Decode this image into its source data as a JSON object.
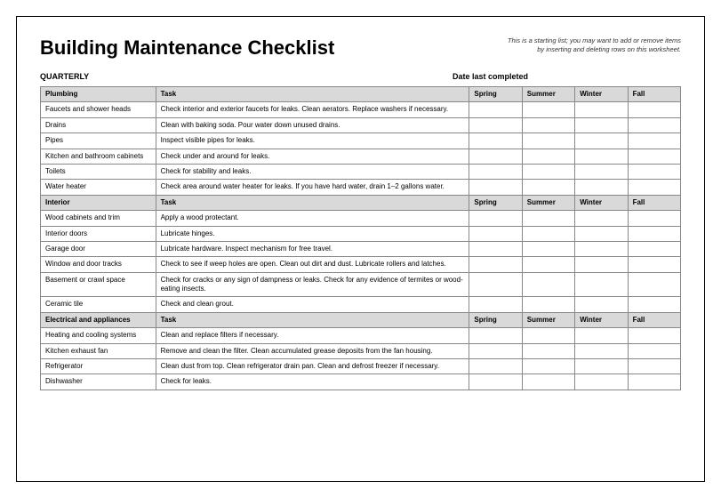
{
  "title": "Building Maintenance Checklist",
  "note_line1": "This is a starting list; you may want to add or remove items",
  "note_line2": "by inserting and deleting rows on this worksheet.",
  "subheader_left": "QUARTERLY",
  "subheader_right": "Date last completed",
  "task_header": "Task",
  "seasons": {
    "spring": "Spring",
    "summer": "Summer",
    "winter": "Winter",
    "fall": "Fall"
  },
  "sections": [
    {
      "name": "Plumbing",
      "rows": [
        {
          "area": "Faucets and shower heads",
          "task": "Check interior and exterior faucets for leaks. Clean aerators. Replace washers if necessary."
        },
        {
          "area": "Drains",
          "task": "Clean with baking soda. Pour water down unused drains."
        },
        {
          "area": "Pipes",
          "task": "Inspect visible pipes for leaks."
        },
        {
          "area": "Kitchen and bathroom cabinets",
          "task": "Check under and around for leaks."
        },
        {
          "area": "Toilets",
          "task": "Check for stability and leaks."
        },
        {
          "area": "Water heater",
          "task": "Check area around water heater for leaks. If you have hard water, drain 1–2 gallons water."
        }
      ]
    },
    {
      "name": "Interior",
      "rows": [
        {
          "area": "Wood cabinets and trim",
          "task": "Apply a wood protectant."
        },
        {
          "area": "Interior doors",
          "task": "Lubricate hinges."
        },
        {
          "area": "Garage door",
          "task": "Lubricate hardware. Inspect mechanism for free travel."
        },
        {
          "area": "Window and door tracks",
          "task": "Check to see if weep holes are open. Clean out dirt and dust. Lubricate rollers and latches."
        },
        {
          "area": "Basement or crawl space",
          "task": "Check for cracks or any sign of dampness or leaks. Check for any evidence of termites or wood-eating insects."
        },
        {
          "area": "Ceramic tile",
          "task": "Check and clean grout."
        }
      ]
    },
    {
      "name": "Electrical and appliances",
      "rows": [
        {
          "area": "Heating and cooling systems",
          "task": "Clean and replace filters if necessary."
        },
        {
          "area": "Kitchen exhaust fan",
          "task": "Remove and clean the filter. Clean accumulated grease deposits from the fan housing."
        },
        {
          "area": "Refrigerator",
          "task": "Clean dust from top. Clean refrigerator drain pan. Clean and defrost freezer if necessary."
        },
        {
          "area": "Dishwasher",
          "task": "Check for leaks."
        }
      ]
    }
  ],
  "colors": {
    "header_bg": "#d9d9d9",
    "border": "#888888",
    "page_border": "#000000",
    "text": "#000000"
  }
}
